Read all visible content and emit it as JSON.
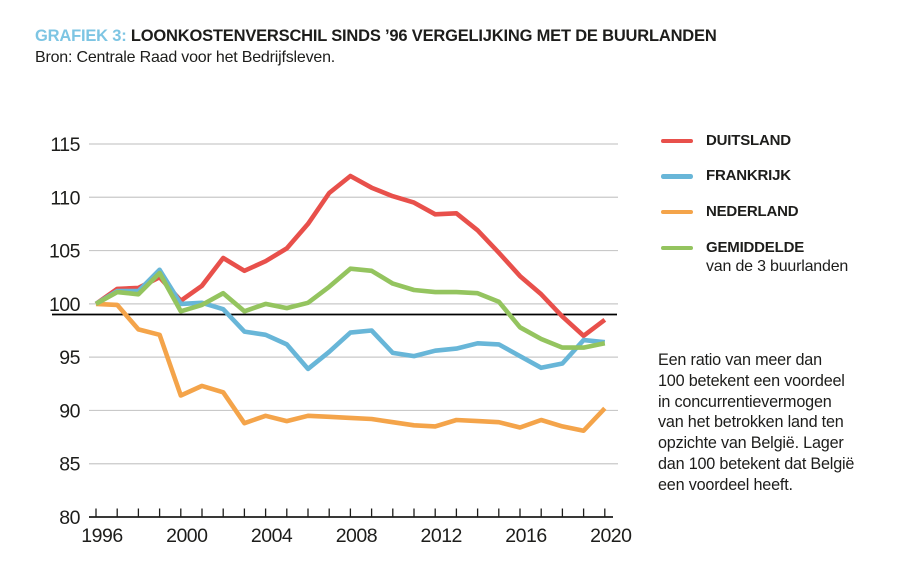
{
  "title": {
    "prefix": "GRAFIEK 3:",
    "text": " LOONKOSTENVERSCHIL SINDS ’96 VERGELIJKING MET DE BUURLANDEN",
    "source": "Bron: Centrale Raad voor het Bedrijfsleven."
  },
  "colors": {
    "duitsland": "#e8504b",
    "frankrijk": "#68b6d8",
    "nederland": "#f4a44a",
    "gemiddelde": "#94c45f",
    "title_accent": "#7dc5e3",
    "grid": "#c9c9c9",
    "axis": "#1d1d1b",
    "reference_line": "#000000",
    "text": "#1d1d1b"
  },
  "legend": [
    {
      "id": "duitsland",
      "label": "DUITSLAND",
      "sublabel": ""
    },
    {
      "id": "frankrijk",
      "label": "FRANKRIJK",
      "sublabel": ""
    },
    {
      "id": "nederland",
      "label": "NEDERLAND",
      "sublabel": ""
    },
    {
      "id": "gemiddelde",
      "label": "GEMIDDELDE",
      "sublabel": "van de 3 buurlanden"
    }
  ],
  "annotation": {
    "lines": [
      "Een ratio van meer dan",
      "100 betekent een voordeel",
      "in concurrentievermogen",
      "van het betrokken land ten",
      "opzichte van België. Lager",
      "dan 100 betekent dat België",
      "een voordeel heeft."
    ]
  },
  "chart_data": {
    "type": "line",
    "title": "Loonkostenverschil sinds '96 vergelijking met de buurlanden",
    "x": [
      1996,
      1997,
      1998,
      1999,
      2000,
      2001,
      2002,
      2003,
      2004,
      2005,
      2006,
      2007,
      2008,
      2009,
      2010,
      2011,
      2012,
      2013,
      2014,
      2015,
      2016,
      2017,
      2018,
      2019,
      2020
    ],
    "x_tick_labels": [
      "1996",
      "2000",
      "2004",
      "2008",
      "2012",
      "2016",
      "2020"
    ],
    "x_tick_label_years": [
      1996,
      2000,
      2004,
      2008,
      2012,
      2016,
      2020
    ],
    "y_ticks": [
      80,
      85,
      90,
      95,
      100,
      105,
      110,
      115
    ],
    "ylim": [
      80,
      115
    ],
    "grid": "horizontal",
    "reference_line_y": 99,
    "legend_position": "right",
    "series": [
      {
        "name": "DUITSLAND",
        "color_key": "duitsland",
        "values": [
          100,
          101.4,
          101.5,
          102.5,
          100.3,
          101.7,
          104.3,
          103.1,
          104.0,
          105.2,
          107.5,
          110.4,
          112.0,
          110.9,
          110.1,
          109.5,
          108.4,
          108.5,
          106.9,
          104.8,
          102.6,
          100.9,
          98.8,
          97.0,
          98.5
        ]
      },
      {
        "name": "FRANKRIJK",
        "color_key": "frankrijk",
        "values": [
          100,
          101.2,
          101.2,
          103.2,
          100.0,
          100.1,
          99.5,
          97.4,
          97.1,
          96.2,
          93.9,
          95.5,
          97.3,
          97.5,
          95.4,
          95.1,
          95.6,
          95.8,
          96.3,
          96.2,
          95.1,
          94.0,
          94.4,
          96.6,
          96.4
        ]
      },
      {
        "name": "NEDERLAND",
        "color_key": "nederland",
        "values": [
          100,
          99.9,
          97.6,
          97.1,
          91.4,
          92.3,
          91.7,
          88.8,
          89.5,
          89.0,
          89.5,
          89.4,
          89.3,
          89.2,
          88.9,
          88.6,
          88.5,
          89.1,
          89.0,
          88.9,
          88.4,
          89.1,
          88.5,
          88.1,
          90.2
        ]
      },
      {
        "name": "GEMIDDELDE van de 3 buurlanden",
        "color_key": "gemiddelde",
        "values": [
          100,
          101.1,
          100.9,
          102.9,
          99.3,
          99.9,
          101.0,
          99.3,
          100.0,
          99.6,
          100.1,
          101.6,
          103.3,
          103.1,
          101.9,
          101.3,
          101.1,
          101.1,
          101.0,
          100.2,
          97.8,
          96.7,
          95.9,
          95.9,
          96.3
        ]
      }
    ]
  }
}
